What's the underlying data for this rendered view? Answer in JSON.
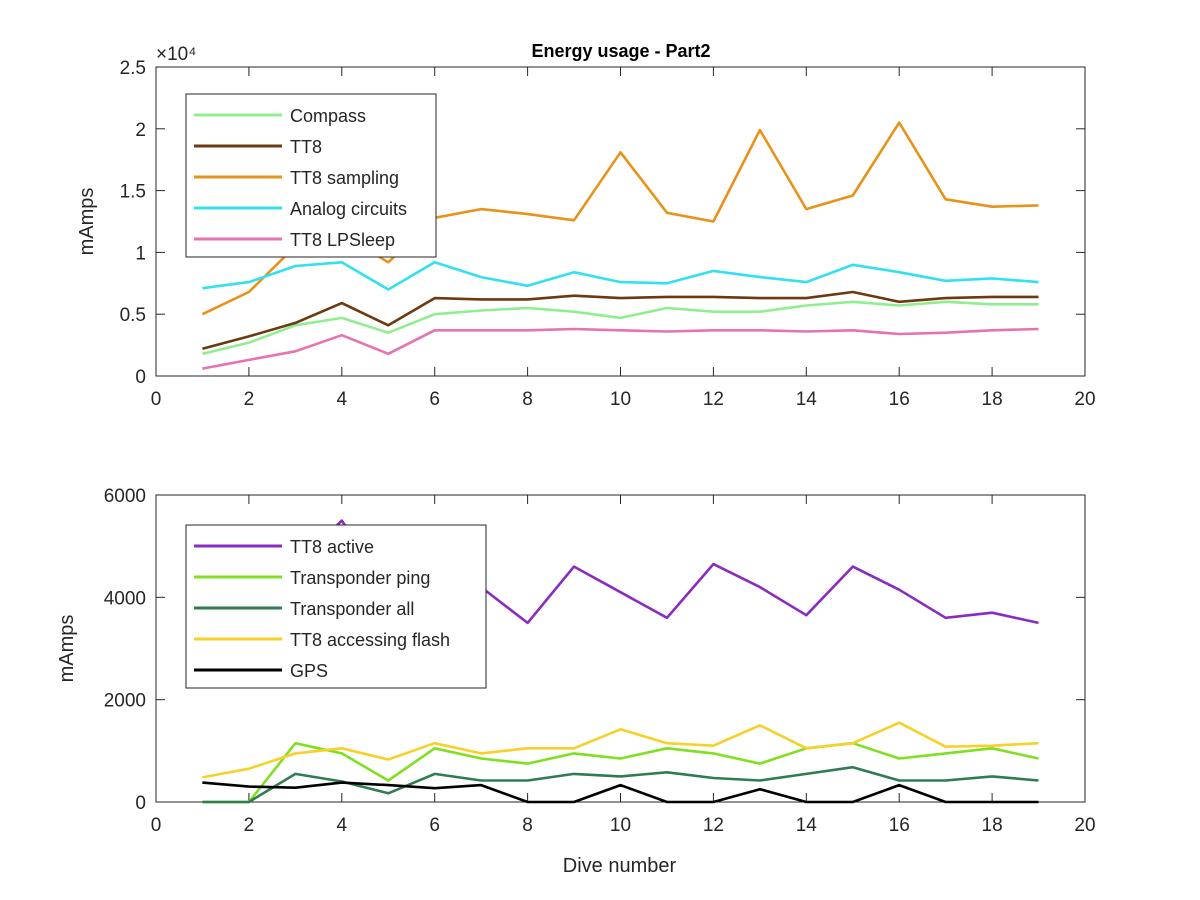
{
  "figure_title": "Energy usage - Part2",
  "chart_data": [
    {
      "type": "line",
      "title": "Energy usage - Part2",
      "xlabel": "",
      "ylabel": "mAmps",
      "xlim": [
        0,
        20
      ],
      "ylim": [
        0,
        25000
      ],
      "x_ticks": [
        "0",
        "2",
        "4",
        "6",
        "8",
        "10",
        "12",
        "14",
        "16",
        "18",
        "20"
      ],
      "y_ticks": [
        "0",
        "0.5",
        "1",
        "1.5",
        "2",
        "2.5"
      ],
      "y_exponent_label": "×10⁴",
      "grid": false,
      "legend_position": "top-left",
      "x": [
        1,
        2,
        3,
        4,
        5,
        6,
        7,
        8,
        9,
        10,
        11,
        12,
        13,
        14,
        15,
        16,
        17,
        18,
        19
      ],
      "series": [
        {
          "name": "Compass",
          "color": "#90EE90",
          "values": [
            1800,
            2700,
            4100,
            4700,
            3500,
            5000,
            5300,
            5500,
            5200,
            4700,
            5500,
            5200,
            5200,
            5700,
            6000,
            5700,
            6000,
            5800,
            5800
          ]
        },
        {
          "name": "TT8",
          "color": "#6B3A10",
          "values": [
            2200,
            3200,
            4300,
            5900,
            4100,
            6300,
            6200,
            6200,
            6500,
            6300,
            6400,
            6400,
            6300,
            6300,
            6800,
            6000,
            6300,
            6400,
            6400
          ]
        },
        {
          "name": "TT8 sampling",
          "color": "#E8921A",
          "values": [
            5000,
            6800,
            10500,
            11500,
            9200,
            12800,
            13500,
            13100,
            12600,
            18100,
            13200,
            12500,
            19900,
            13500,
            14600,
            20500,
            14300,
            13700,
            13800
          ]
        },
        {
          "name": "Analog circuits",
          "color": "#33E0F0",
          "values": [
            7100,
            7600,
            8900,
            9200,
            7000,
            9200,
            8000,
            7300,
            8400,
            7600,
            7500,
            8500,
            8000,
            7600,
            9000,
            8400,
            7700,
            7900,
            7600
          ]
        },
        {
          "name": "TT8 LPSleep",
          "color": "#E672B0",
          "values": [
            600,
            1300,
            2000,
            3300,
            1800,
            3700,
            3700,
            3700,
            3800,
            3700,
            3600,
            3700,
            3700,
            3600,
            3700,
            3400,
            3500,
            3700,
            3800
          ]
        }
      ]
    },
    {
      "type": "line",
      "title": "",
      "xlabel": "Dive number",
      "ylabel": "mAmps",
      "xlim": [
        0,
        20
      ],
      "ylim": [
        0,
        6000
      ],
      "x_ticks": [
        "0",
        "2",
        "4",
        "6",
        "8",
        "10",
        "12",
        "14",
        "16",
        "18",
        "20"
      ],
      "y_ticks": [
        "0",
        "2000",
        "4000",
        "6000"
      ],
      "grid": false,
      "legend_position": "top-left",
      "x": [
        1,
        2,
        3,
        4,
        5,
        6,
        7,
        8,
        9,
        10,
        11,
        12,
        13,
        14,
        15,
        16,
        17,
        18,
        19
      ],
      "series": [
        {
          "name": "TT8 active",
          "color": "#8A2BC0",
          "values": [
            3000,
            3600,
            4600,
            5500,
            4200,
            4900,
            4200,
            3500,
            4600,
            4100,
            3600,
            4650,
            4200,
            3650,
            4600,
            4150,
            3600,
            3700,
            3500
          ]
        },
        {
          "name": "Transponder ping",
          "color": "#80E020",
          "values": [
            0,
            0,
            1150,
            950,
            420,
            1050,
            850,
            750,
            950,
            850,
            1050,
            950,
            750,
            1050,
            1150,
            850,
            950,
            1050,
            850
          ]
        },
        {
          "name": "Transponder all",
          "color": "#2E7D50",
          "values": [
            0,
            0,
            550,
            400,
            170,
            550,
            420,
            420,
            550,
            500,
            580,
            470,
            420,
            550,
            680,
            420,
            420,
            500,
            420
          ]
        },
        {
          "name": "TT8 accessing flash",
          "color": "#F7D02A",
          "values": [
            480,
            650,
            950,
            1050,
            830,
            1150,
            950,
            1050,
            1050,
            1420,
            1150,
            1100,
            1500,
            1050,
            1150,
            1550,
            1080,
            1100,
            1150
          ]
        },
        {
          "name": "GPS",
          "color": "#000000",
          "values": [
            380,
            300,
            280,
            380,
            330,
            270,
            330,
            0,
            0,
            330,
            0,
            0,
            250,
            0,
            0,
            330,
            0,
            0,
            0
          ]
        }
      ]
    }
  ]
}
